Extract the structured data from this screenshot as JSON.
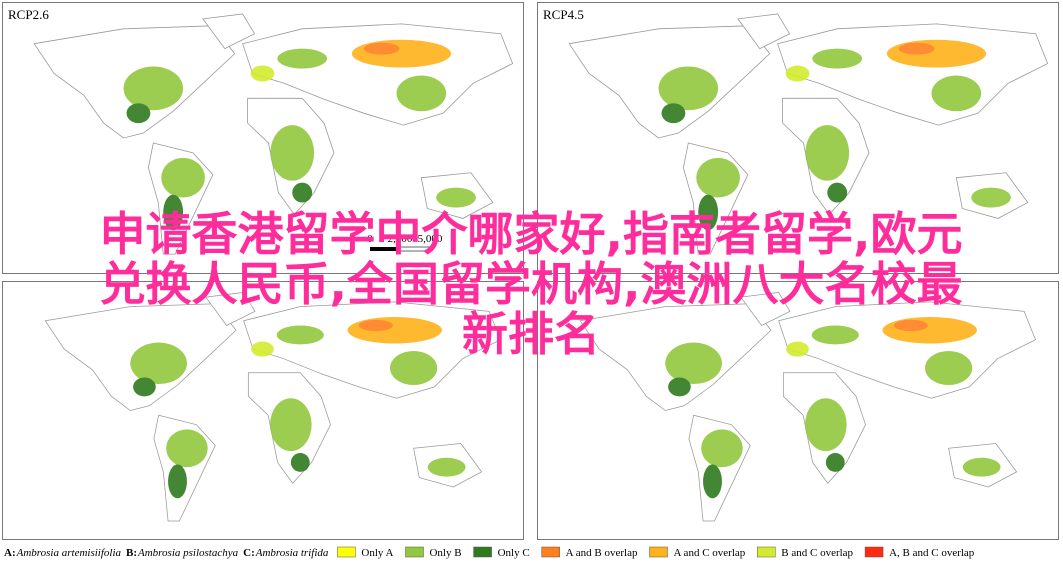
{
  "panels": [
    {
      "label": "RCP2.6"
    },
    {
      "label": "RCP4.5"
    }
  ],
  "scale_bar": {
    "labels": [
      "0",
      "2,500",
      "5,000"
    ]
  },
  "species": [
    {
      "key": "A:",
      "name": "Ambrosia artemisiifolia"
    },
    {
      "key": "B:",
      "name": "Ambrosia psilostachya"
    },
    {
      "key": "C:",
      "name": "Ambrosia trifida"
    }
  ],
  "legend": [
    {
      "label": "Only A",
      "color": "#ffff00"
    },
    {
      "label": "Only B",
      "color": "#92c83e"
    },
    {
      "label": "Only C",
      "color": "#2f7a1f"
    },
    {
      "label": "A and B overlap",
      "color": "#ff7f1e"
    },
    {
      "label": "A and C overlap",
      "color": "#ffb21a"
    },
    {
      "label": "B and C overlap",
      "color": "#d4ec2e"
    },
    {
      "label": "A, B and C overlap",
      "color": "#ff2a10"
    }
  ],
  "overlay": [
    "申请香港留学中介哪家好,指南者留学,欧元",
    "兑换人民币,全国留学机构,澳洲八大名校最",
    "新排名"
  ]
}
